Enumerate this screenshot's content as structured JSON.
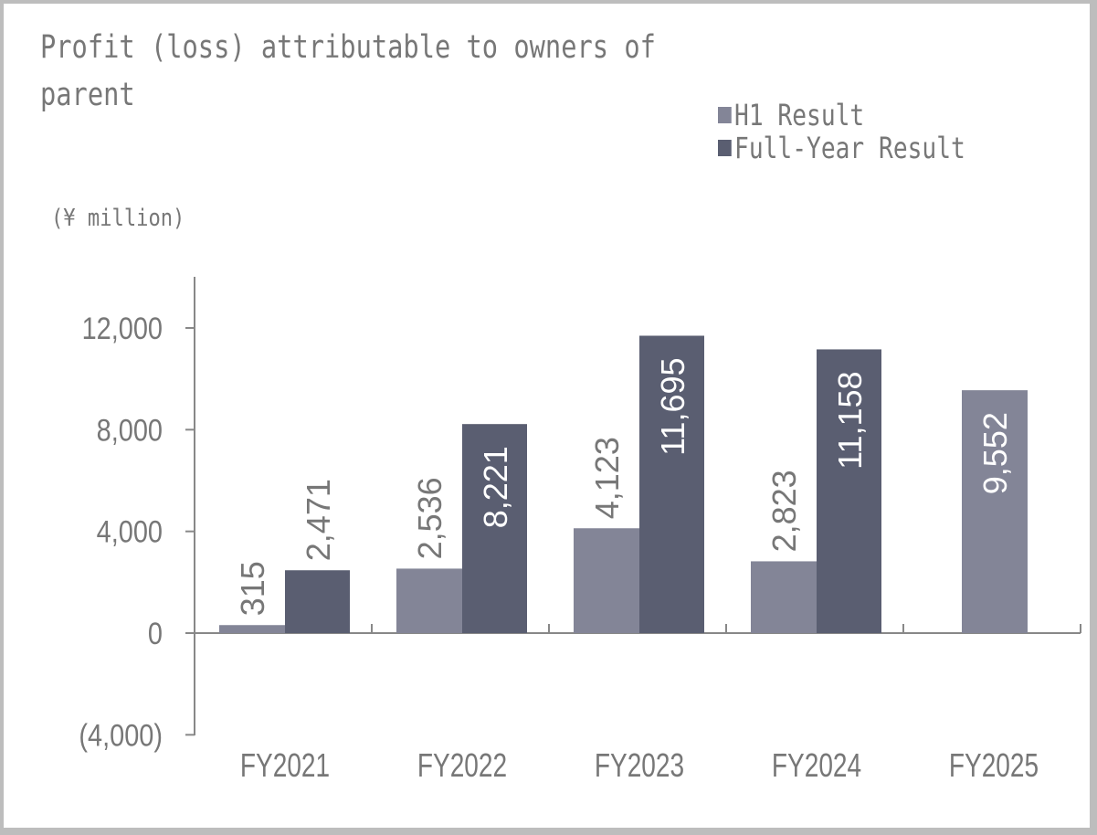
{
  "title": "Profit (loss) attributable to owners of parent",
  "unit_label": "(¥ million)",
  "legend": [
    {
      "label": "H1 Result",
      "color": "#838597"
    },
    {
      "label": "Full-Year Result",
      "color": "#5a5e71"
    }
  ],
  "y_axis": {
    "ticks": [
      {
        "value": 12000,
        "label": "12,000"
      },
      {
        "value": 8000,
        "label": "8,000"
      },
      {
        "value": 4000,
        "label": "4,000"
      },
      {
        "value": 0,
        "label": "0"
      },
      {
        "value": -4000,
        "label": "(4,000)"
      }
    ]
  },
  "categories": [
    "FY2021",
    "FY2022",
    "FY2023",
    "FY2024",
    "FY2025"
  ],
  "chart_data": {
    "type": "bar",
    "title": "Profit (loss) attributable to owners of parent",
    "xlabel": "",
    "ylabel": "(¥ million)",
    "ylim": [
      -4000,
      14000
    ],
    "grid": false,
    "legend_position": "top-right",
    "categories": [
      "FY2021",
      "FY2022",
      "FY2023",
      "FY2024",
      "FY2025"
    ],
    "series": [
      {
        "name": "H1 Result",
        "color": "#838597",
        "values": [
          315,
          2536,
          4123,
          2823,
          9552
        ],
        "labels": [
          "315",
          "2,536",
          "4,123",
          "2,823",
          "9,552"
        ]
      },
      {
        "name": "Full-Year Result",
        "color": "#5a5e71",
        "values": [
          2471,
          8221,
          11695,
          11158,
          null
        ],
        "labels": [
          "2,471",
          "8,221",
          "11,695",
          "11,158",
          ""
        ]
      }
    ],
    "y_ticks": [
      12000,
      8000,
      4000,
      0,
      -4000
    ],
    "y_tick_labels": [
      "12,000",
      "8,000",
      "4,000",
      "0",
      "(4,000)"
    ]
  }
}
